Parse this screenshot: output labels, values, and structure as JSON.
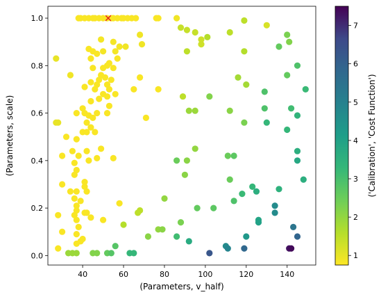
{
  "chart_data": {
    "type": "scatter",
    "xlabel": "(Parameters, v_half)",
    "ylabel": "(Parameters, scale)",
    "xlim": [
      23,
      154
    ],
    "ylim": [
      -0.04,
      1.05
    ],
    "xticks": [
      40,
      60,
      80,
      100,
      120,
      140
    ],
    "yticks": [
      0.0,
      0.2,
      0.4,
      0.6,
      0.8,
      1.0
    ],
    "xtick_labels": [
      "40",
      "60",
      "80",
      "100",
      "120",
      "140"
    ],
    "ytick_labels": [
      "0.0",
      "0.2",
      "0.4",
      "0.6",
      "0.8",
      "1.0"
    ],
    "colorbar": {
      "label": "('Calibration', 'Cost Function')",
      "colormap": "viridis_r",
      "min": 0.75,
      "max": 7.5,
      "ticks": [
        1,
        2,
        3,
        4,
        5,
        6,
        7
      ],
      "tick_labels": [
        "1",
        "2",
        "3",
        "4",
        "5",
        "6",
        "7"
      ]
    },
    "best_marker": {
      "x": 52.5,
      "y": 1.0,
      "symbol": "x",
      "color": "#e8161b"
    },
    "points": [
      [
        38,
        1.0,
        0.8
      ],
      [
        39,
        1.0,
        0.8
      ],
      [
        41,
        1.0,
        0.8
      ],
      [
        43,
        1.0,
        0.8
      ],
      [
        45,
        1.0,
        0.8
      ],
      [
        46,
        1.0,
        0.8
      ],
      [
        48,
        1.0,
        0.8
      ],
      [
        50,
        1.0,
        0.8
      ],
      [
        52,
        1.0,
        0.8
      ],
      [
        54,
        1.0,
        0.8
      ],
      [
        55,
        1.0,
        0.8
      ],
      [
        57,
        1.0,
        0.8
      ],
      [
        59,
        1.0,
        0.8
      ],
      [
        60,
        1.0,
        0.8
      ],
      [
        62,
        1.0,
        0.8
      ],
      [
        64,
        1.0,
        0.8
      ],
      [
        66,
        1.0,
        0.8
      ],
      [
        76,
        1.0,
        0.8
      ],
      [
        77,
        1.0,
        0.8
      ],
      [
        86,
        1.0,
        0.9
      ],
      [
        68,
        0.93,
        0.9
      ],
      [
        69,
        0.89,
        0.9
      ],
      [
        61,
        0.88,
        0.9
      ],
      [
        55,
        0.9,
        0.85
      ],
      [
        58,
        0.88,
        0.85
      ],
      [
        49,
        0.91,
        0.85
      ],
      [
        50,
        0.86,
        0.85
      ],
      [
        43,
        0.87,
        0.8
      ],
      [
        45,
        0.86,
        0.8
      ],
      [
        47,
        0.85,
        0.8
      ],
      [
        44,
        0.83,
        0.8
      ],
      [
        56,
        0.86,
        0.85
      ],
      [
        53,
        0.81,
        0.8
      ],
      [
        27,
        0.83,
        1.0
      ],
      [
        45,
        0.79,
        0.8
      ],
      [
        50,
        0.79,
        0.8
      ],
      [
        52,
        0.8,
        0.8
      ],
      [
        55,
        0.79,
        0.8
      ],
      [
        57,
        0.83,
        0.8
      ],
      [
        49,
        0.76,
        0.8
      ],
      [
        51,
        0.75,
        0.8
      ],
      [
        54,
        0.74,
        0.8
      ],
      [
        34,
        0.76,
        0.9
      ],
      [
        44,
        0.73,
        0.8
      ],
      [
        47,
        0.72,
        0.8
      ],
      [
        48,
        0.74,
        0.8
      ],
      [
        52,
        0.72,
        0.8
      ],
      [
        53,
        0.7,
        0.8
      ],
      [
        50,
        0.68,
        0.8
      ],
      [
        56,
        0.68,
        0.8
      ],
      [
        41,
        0.71,
        0.8
      ],
      [
        46,
        0.7,
        0.8
      ],
      [
        65,
        0.7,
        0.8
      ],
      [
        68,
        0.75,
        0.8
      ],
      [
        77,
        0.7,
        0.8
      ],
      [
        52,
        0.67,
        0.8
      ],
      [
        44,
        0.65,
        0.8
      ],
      [
        48,
        0.66,
        0.8
      ],
      [
        53,
        0.63,
        0.8
      ],
      [
        40,
        0.62,
        0.8
      ],
      [
        41,
        0.6,
        0.8
      ],
      [
        43,
        0.59,
        0.8
      ],
      [
        45,
        0.58,
        0.8
      ],
      [
        37,
        0.6,
        0.8
      ],
      [
        47,
        0.6,
        0.8
      ],
      [
        52,
        0.6,
        0.8
      ],
      [
        27,
        0.56,
        1.0
      ],
      [
        28,
        0.56,
        1.0
      ],
      [
        42,
        0.56,
        0.8
      ],
      [
        44,
        0.54,
        0.8
      ],
      [
        40,
        0.52,
        0.8
      ],
      [
        42,
        0.52,
        0.8
      ],
      [
        46,
        0.52,
        0.8
      ],
      [
        71,
        0.58,
        0.8
      ],
      [
        32,
        0.5,
        0.8
      ],
      [
        37,
        0.49,
        0.8
      ],
      [
        35,
        0.44,
        0.8
      ],
      [
        42,
        0.44,
        0.8
      ],
      [
        49,
        0.45,
        0.8
      ],
      [
        55,
        0.41,
        0.8
      ],
      [
        30,
        0.42,
        0.8
      ],
      [
        38,
        0.42,
        0.8
      ],
      [
        43,
        0.4,
        0.8
      ],
      [
        47,
        0.41,
        0.8
      ],
      [
        36,
        0.39,
        0.8
      ],
      [
        37,
        0.36,
        0.8
      ],
      [
        36,
        0.34,
        0.8
      ],
      [
        41,
        0.31,
        0.8
      ],
      [
        41,
        0.29,
        0.8
      ],
      [
        30,
        0.3,
        0.8
      ],
      [
        34,
        0.27,
        0.8
      ],
      [
        37,
        0.27,
        0.8
      ],
      [
        42,
        0.27,
        0.8
      ],
      [
        36,
        0.24,
        0.8
      ],
      [
        39,
        0.23,
        0.8
      ],
      [
        37,
        0.21,
        0.8
      ],
      [
        41,
        0.18,
        0.8
      ],
      [
        42,
        0.18,
        0.8
      ],
      [
        36,
        0.17,
        0.8
      ],
      [
        44,
        0.16,
        0.8
      ],
      [
        28,
        0.17,
        0.8
      ],
      [
        37,
        0.19,
        0.8
      ],
      [
        37,
        0.15,
        0.8
      ],
      [
        38,
        0.12,
        0.8
      ],
      [
        37,
        0.09,
        0.8
      ],
      [
        30,
        0.1,
        0.8
      ],
      [
        50,
        0.15,
        0.8
      ],
      [
        37,
        0.05,
        0.8
      ],
      [
        39,
        0.06,
        0.8
      ],
      [
        40,
        0.07,
        0.8
      ],
      [
        28,
        0.03,
        0.8
      ],
      [
        58,
        0.22,
        0.8
      ],
      [
        33,
        0.01,
        1.9
      ],
      [
        35,
        0.01,
        1.9
      ],
      [
        37,
        0.01,
        1.9
      ],
      [
        45,
        0.01,
        2.2
      ],
      [
        47,
        0.01,
        2.2
      ],
      [
        52,
        0.01,
        2.6
      ],
      [
        54,
        0.01,
        2.8
      ],
      [
        56,
        0.04,
        2.8
      ],
      [
        63,
        0.01,
        3.3
      ],
      [
        65,
        0.01,
        3.3
      ],
      [
        60,
        0.13,
        1.6
      ],
      [
        67,
        0.18,
        1.5
      ],
      [
        68,
        0.19,
        1.5
      ],
      [
        72,
        0.08,
        2.1
      ],
      [
        77,
        0.11,
        2.0
      ],
      [
        79,
        0.11,
        2.1
      ],
      [
        80,
        0.24,
        2.0
      ],
      [
        86,
        0.08,
        3.1
      ],
      [
        88,
        0.14,
        2.3
      ],
      [
        92,
        0.06,
        3.7
      ],
      [
        102,
        0.01,
        6.3
      ],
      [
        110,
        0.04,
        4.7
      ],
      [
        111,
        0.03,
        4.9
      ],
      [
        119,
        0.03,
        5.8
      ],
      [
        120,
        0.08,
        4.3
      ],
      [
        86,
        0.4,
        2.5
      ],
      [
        90,
        0.34,
        2.1
      ],
      [
        91,
        0.4,
        2.1
      ],
      [
        95,
        0.45,
        2.0
      ],
      [
        92,
        0.61,
        1.9
      ],
      [
        95,
        0.61,
        1.9
      ],
      [
        89,
        0.67,
        1.5
      ],
      [
        88,
        0.96,
        1.4
      ],
      [
        91,
        0.95,
        1.4
      ],
      [
        95,
        0.94,
        1.4
      ],
      [
        98,
        0.91,
        1.3
      ],
      [
        98,
        0.89,
        1.3
      ],
      [
        101,
        0.92,
        1.6
      ],
      [
        91,
        0.86,
        1.5
      ],
      [
        112,
        0.94,
        1.5
      ],
      [
        119,
        0.99,
        1.5
      ],
      [
        119,
        0.86,
        1.6
      ],
      [
        116,
        0.75,
        1.8
      ],
      [
        120,
        0.72,
        1.8
      ],
      [
        112,
        0.61,
        2.1
      ],
      [
        102,
        0.67,
        2.2
      ],
      [
        119,
        0.56,
        2.3
      ],
      [
        129,
        0.62,
        2.9
      ],
      [
        129,
        0.69,
        2.9
      ],
      [
        130,
        0.97,
        1.2
      ],
      [
        130,
        0.56,
        3.3
      ],
      [
        111,
        0.42,
        2.5
      ],
      [
        114,
        0.42,
        2.7
      ],
      [
        112,
        0.32,
        2.5
      ],
      [
        96,
        0.2,
        2.6
      ],
      [
        104,
        0.2,
        2.7
      ],
      [
        114,
        0.23,
        2.9
      ],
      [
        118,
        0.26,
        3.2
      ],
      [
        123,
        0.29,
        3.3
      ],
      [
        125,
        0.27,
        3.6
      ],
      [
        126,
        0.15,
        3.9
      ],
      [
        126,
        0.14,
        4.0
      ],
      [
        134,
        0.21,
        4.7
      ],
      [
        134,
        0.18,
        4.7
      ],
      [
        136,
        0.28,
        3.5
      ],
      [
        136,
        0.88,
        2.6
      ],
      [
        140,
        0.93,
        2.3
      ],
      [
        141,
        0.9,
        2.2
      ],
      [
        140,
        0.76,
        2.6
      ],
      [
        145,
        0.8,
        2.9
      ],
      [
        142,
        0.62,
        3.1
      ],
      [
        145,
        0.59,
        3.4
      ],
      [
        149,
        0.7,
        3.2
      ],
      [
        140,
        0.53,
        3.3
      ],
      [
        145,
        0.44,
        3.6
      ],
      [
        145,
        0.4,
        3.8
      ],
      [
        148,
        0.32,
        3.6
      ],
      [
        143,
        0.12,
        5.4
      ],
      [
        145,
        0.08,
        5.9
      ],
      [
        141,
        0.03,
        7.3
      ],
      [
        142,
        0.03,
        7.4
      ]
    ]
  }
}
